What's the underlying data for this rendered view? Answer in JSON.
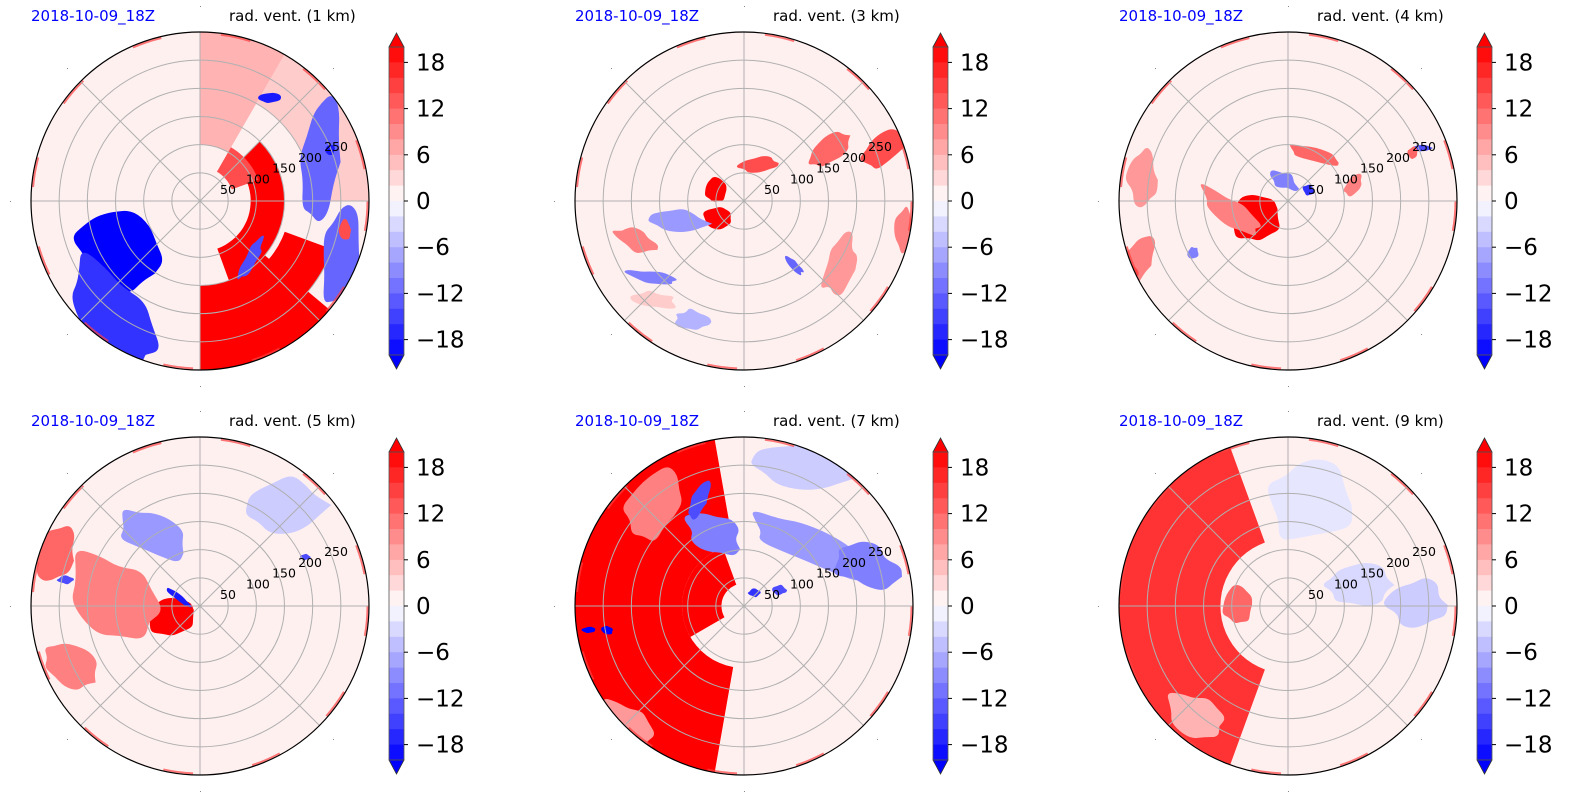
{
  "figure": {
    "panels": [
      {
        "date": "2018-10-09_18Z",
        "title": "rad. vent. (1 km)"
      },
      {
        "date": "2018-10-09_18Z",
        "title": "rad. vent. (3 km)"
      },
      {
        "date": "2018-10-09_18Z",
        "title": "rad. vent. (4 km)"
      },
      {
        "date": "2018-10-09_18Z",
        "title": "rad. vent. (5 km)"
      },
      {
        "date": "2018-10-09_18Z",
        "title": "rad. vent. (7 km)"
      },
      {
        "date": "2018-10-09_18Z",
        "title": "rad. vent. (9 km)"
      }
    ]
  },
  "colors": {
    "date_label": "#0000ff",
    "positive_max": "#ff0000",
    "negative_max": "#0000ff",
    "grid": "#b0b0b0"
  },
  "chart_data": [
    {
      "type": "heatmap",
      "projection": "polar",
      "title": "rad. vent. (1 km)",
      "date": "2018-10-09_18Z",
      "radial_ticks": [
        "50",
        "100",
        "150",
        "200",
        "250"
      ],
      "radial_range_km": [
        0,
        300
      ],
      "angular_gridlines_deg": [
        0,
        45,
        90,
        135,
        180,
        225,
        270,
        315
      ],
      "colorbar": {
        "levels_min": -20,
        "levels_max": 20,
        "step": 2,
        "extend": "both",
        "ticks": [
          "18",
          "12",
          "6",
          "0",
          "−6",
          "−12",
          "−18"
        ],
        "cmap": "bwr"
      },
      "features": [
        {
          "sign": "positive",
          "description": "strong outbound band spiraling along east/southeast from center to edge",
          "region": "east-southeast",
          "max_value": 20
        },
        {
          "sign": "negative",
          "description": "strong inbound region southwest of center",
          "region": "southwest",
          "min_value": -20
        },
        {
          "sign": "mixed",
          "description": "small-scale alternating cells in the northeast outer ring",
          "region": "northeast"
        }
      ]
    },
    {
      "type": "heatmap",
      "projection": "polar",
      "title": "rad. vent. (3 km)",
      "date": "2018-10-09_18Z",
      "radial_ticks": [
        "50",
        "100",
        "150",
        "200",
        "250"
      ],
      "radial_range_km": [
        0,
        300
      ],
      "angular_gridlines_deg": [
        0,
        45,
        90,
        135,
        180,
        225,
        270,
        315
      ],
      "colorbar": {
        "levels_min": -20,
        "levels_max": 20,
        "step": 2,
        "extend": "both",
        "ticks": [
          "18",
          "12",
          "6",
          "0",
          "−6",
          "−12",
          "−18"
        ],
        "cmap": "bwr"
      },
      "features": [
        {
          "sign": "positive",
          "description": "compact strong cells just west of center",
          "region": "west-center",
          "max_value": 20
        },
        {
          "sign": "positive",
          "description": "moderate arc north and northeast, strong at east edge",
          "region": "northeast",
          "max_value": 14
        },
        {
          "sign": "negative",
          "description": "weak scattered inbound band west and southwest",
          "region": "southwest",
          "min_value": -10
        }
      ]
    },
    {
      "type": "heatmap",
      "projection": "polar",
      "title": "rad. vent. (4 km)",
      "date": "2018-10-09_18Z",
      "radial_ticks": [
        "50",
        "100",
        "150",
        "200",
        "250"
      ],
      "radial_range_km": [
        0,
        300
      ],
      "angular_gridlines_deg": [
        0,
        45,
        90,
        135,
        180,
        225,
        270,
        315
      ],
      "colorbar": {
        "levels_min": -20,
        "levels_max": 20,
        "step": 2,
        "extend": "both",
        "ticks": [
          "18",
          "12",
          "6",
          "0",
          "−6",
          "−12",
          "−18"
        ],
        "cmap": "bwr"
      },
      "features": [
        {
          "sign": "positive",
          "description": "strong outbound blob west-southwest adjacent to center",
          "region": "west-southwest",
          "max_value": 20
        },
        {
          "sign": "positive",
          "description": "moderate streaks along western edge",
          "region": "west-edge",
          "max_value": 12
        },
        {
          "sign": "negative",
          "description": "small inbound spots near center and northwest",
          "region": "northwest",
          "min_value": -16
        }
      ]
    },
    {
      "type": "heatmap",
      "projection": "polar",
      "title": "rad. vent. (5 km)",
      "date": "2018-10-09_18Z",
      "radial_ticks": [
        "50",
        "100",
        "150",
        "200",
        "250"
      ],
      "radial_range_km": [
        0,
        300
      ],
      "angular_gridlines_deg": [
        0,
        45,
        90,
        135,
        180,
        225,
        270,
        315
      ],
      "colorbar": {
        "levels_min": -20,
        "levels_max": 20,
        "step": 2,
        "extend": "both",
        "ticks": [
          "18",
          "12",
          "6",
          "0",
          "−6",
          "−12",
          "−18"
        ],
        "cmap": "bwr"
      },
      "features": [
        {
          "sign": "positive",
          "description": "strong outbound blob west of center, moderate band toward western edge",
          "region": "west",
          "max_value": 20
        },
        {
          "sign": "negative",
          "description": "inbound band northwest of center",
          "region": "northwest",
          "min_value": -18
        }
      ]
    },
    {
      "type": "heatmap",
      "projection": "polar",
      "title": "rad. vent. (7 km)",
      "date": "2018-10-09_18Z",
      "radial_ticks": [
        "50",
        "100",
        "150",
        "200",
        "250"
      ],
      "radial_range_km": [
        0,
        300
      ],
      "angular_gridlines_deg": [
        0,
        45,
        90,
        135,
        180,
        225,
        270,
        315
      ],
      "colorbar": {
        "levels_min": -20,
        "levels_max": 20,
        "step": 2,
        "extend": "both",
        "ticks": [
          "18",
          "12",
          "6",
          "0",
          "−6",
          "−12",
          "−18"
        ],
        "cmap": "bwr"
      },
      "features": [
        {
          "sign": "positive",
          "description": "large saturated outbound region covering western half",
          "region": "west",
          "max_value": 20
        },
        {
          "sign": "negative",
          "description": "moderate inbound band arcing north to east",
          "region": "north-northeast",
          "min_value": -14
        }
      ]
    },
    {
      "type": "heatmap",
      "projection": "polar",
      "title": "rad. vent. (9 km)",
      "date": "2018-10-09_18Z",
      "radial_ticks": [
        "50",
        "100",
        "150",
        "200",
        "250"
      ],
      "radial_range_km": [
        0,
        300
      ],
      "angular_gridlines_deg": [
        0,
        45,
        90,
        135,
        180,
        225,
        270,
        315
      ],
      "colorbar": {
        "levels_min": -20,
        "levels_max": 20,
        "step": 2,
        "extend": "both",
        "ticks": [
          "18",
          "12",
          "6",
          "0",
          "−6",
          "−12",
          "−18"
        ],
        "cmap": "bwr"
      },
      "features": [
        {
          "sign": "positive",
          "description": "crescent of strong outbound flow on western side",
          "region": "west",
          "max_value": 20
        },
        {
          "sign": "negative",
          "description": "weak inbound flow on eastern side",
          "region": "east",
          "min_value": -6
        }
      ]
    }
  ]
}
